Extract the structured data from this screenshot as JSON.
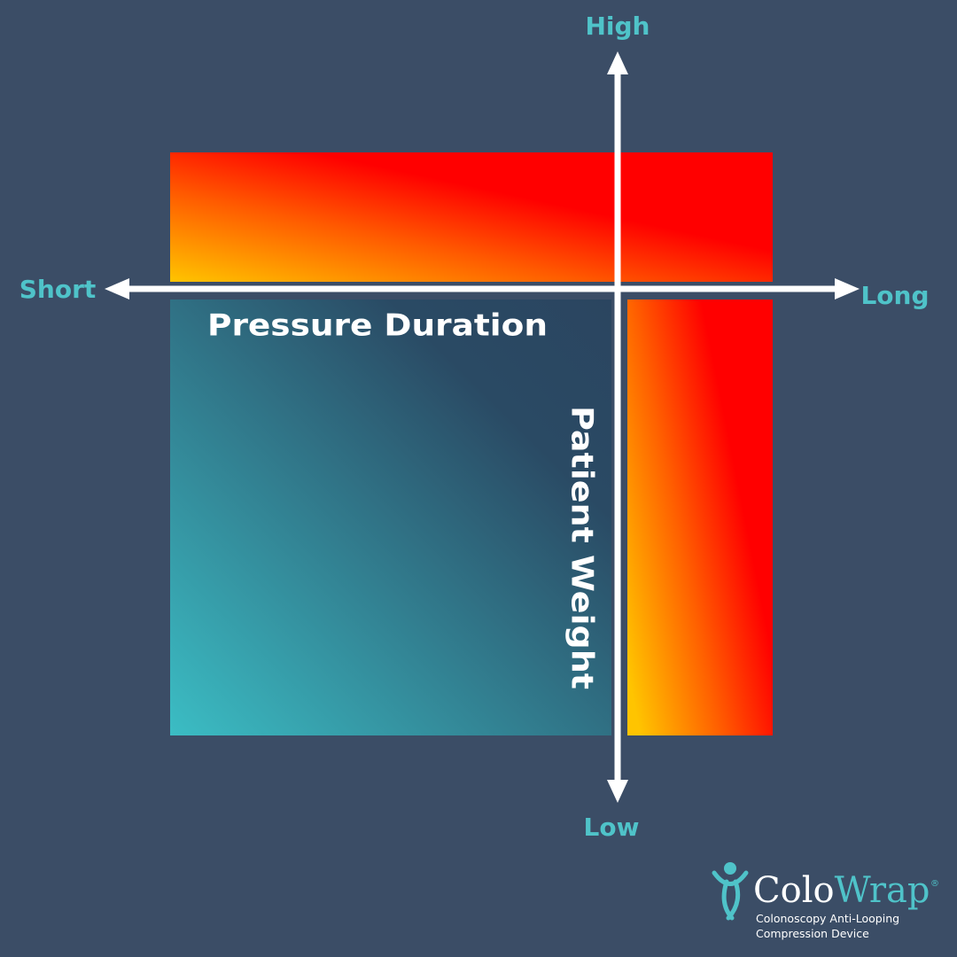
{
  "axes": {
    "top": "High",
    "bottom": "Low",
    "left": "Short",
    "right": "Long"
  },
  "labels": {
    "horizontal": "Pressure Duration",
    "vertical": "Patient Weight"
  },
  "logo": {
    "name_first": "Colo",
    "name_second": "Wrap",
    "mark": "®",
    "tagline_1": "Colonoscopy Anti-Looping",
    "tagline_2": "Compression Device"
  }
}
